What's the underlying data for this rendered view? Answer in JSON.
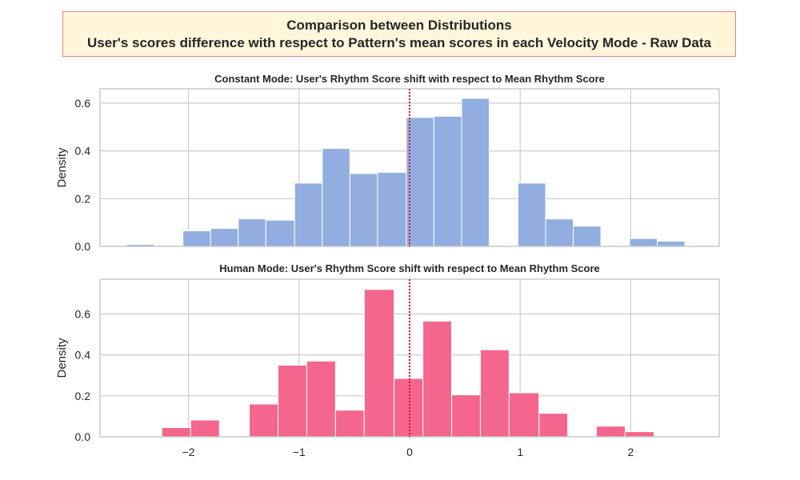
{
  "figure": {
    "title_line1": "Comparison between Distributions",
    "title_line2": "User's scores difference with respect to Pattern's mean scores in each Velocity Mode - Raw Data"
  },
  "chart_data": [
    {
      "type": "histogram",
      "title": "Constant Mode: User's Rhythm Score shift with respect to Mean Rhythm Score",
      "xlabel": "",
      "ylabel": "Density",
      "color": "#92aee0",
      "xlim": [
        -2.8,
        2.8
      ],
      "ylim": [
        0,
        0.66
      ],
      "xticks": [
        -2,
        -1,
        0,
        1,
        2
      ],
      "xtick_labels": [
        "",
        "",
        "",
        "",
        ""
      ],
      "yticks": [
        0.0,
        0.2,
        0.4,
        0.6
      ],
      "ytick_labels": [
        "0.0",
        "0.2",
        "0.4",
        "0.6"
      ],
      "vline": 0,
      "vline_color": "#e8000b",
      "bins": [
        {
          "x0": -2.56,
          "x1": -2.31,
          "value": 0.008
        },
        {
          "x0": -2.31,
          "x1": -2.05,
          "value": 0.0
        },
        {
          "x0": -2.05,
          "x1": -1.8,
          "value": 0.065
        },
        {
          "x0": -1.8,
          "x1": -1.55,
          "value": 0.075
        },
        {
          "x0": -1.55,
          "x1": -1.3,
          "value": 0.115
        },
        {
          "x0": -1.3,
          "x1": -1.04,
          "value": 0.11
        },
        {
          "x0": -1.04,
          "x1": -0.79,
          "value": 0.265
        },
        {
          "x0": -0.79,
          "x1": -0.54,
          "value": 0.41
        },
        {
          "x0": -0.54,
          "x1": -0.29,
          "value": 0.305
        },
        {
          "x0": -0.29,
          "x1": -0.03,
          "value": 0.31
        },
        {
          "x0": -0.03,
          "x1": 0.22,
          "value": 0.54
        },
        {
          "x0": 0.22,
          "x1": 0.47,
          "value": 0.545
        },
        {
          "x0": 0.47,
          "x1": 0.72,
          "value": 0.62
        },
        {
          "x0": 0.72,
          "x1": 0.98,
          "value": 0.0
        },
        {
          "x0": 0.98,
          "x1": 1.23,
          "value": 0.265
        },
        {
          "x0": 1.23,
          "x1": 1.48,
          "value": 0.115
        },
        {
          "x0": 1.48,
          "x1": 1.73,
          "value": 0.085
        },
        {
          "x0": 1.73,
          "x1": 1.99,
          "value": 0.0
        },
        {
          "x0": 1.99,
          "x1": 2.24,
          "value": 0.033
        },
        {
          "x0": 2.24,
          "x1": 2.49,
          "value": 0.022
        }
      ]
    },
    {
      "type": "histogram",
      "title": "Human Mode: User's Rhythm Score shift with respect to Mean Rhythm Score",
      "xlabel": "",
      "ylabel": "Density",
      "color": "#f4668d",
      "xlim": [
        -2.8,
        2.8
      ],
      "ylim": [
        0,
        0.77
      ],
      "xticks": [
        -2,
        -1,
        0,
        1,
        2
      ],
      "xtick_labels": [
        "−2",
        "−1",
        "0",
        "1",
        "2"
      ],
      "yticks": [
        0.0,
        0.2,
        0.4,
        0.6
      ],
      "ytick_labels": [
        "0.0",
        "0.2",
        "0.4",
        "0.6"
      ],
      "vline": 0,
      "vline_color": "#e8000b",
      "bins": [
        {
          "x0": -2.24,
          "x1": -1.98,
          "value": 0.045
        },
        {
          "x0": -1.98,
          "x1": -1.72,
          "value": 0.082
        },
        {
          "x0": -1.72,
          "x1": -1.45,
          "value": 0.0
        },
        {
          "x0": -1.45,
          "x1": -1.19,
          "value": 0.16
        },
        {
          "x0": -1.19,
          "x1": -0.93,
          "value": 0.35
        },
        {
          "x0": -0.93,
          "x1": -0.67,
          "value": 0.37
        },
        {
          "x0": -0.67,
          "x1": -0.41,
          "value": 0.13
        },
        {
          "x0": -0.41,
          "x1": -0.14,
          "value": 0.72
        },
        {
          "x0": -0.14,
          "x1": 0.12,
          "value": 0.285
        },
        {
          "x0": 0.12,
          "x1": 0.38,
          "value": 0.565
        },
        {
          "x0": 0.38,
          "x1": 0.64,
          "value": 0.205
        },
        {
          "x0": 0.64,
          "x1": 0.9,
          "value": 0.425
        },
        {
          "x0": 0.9,
          "x1": 1.17,
          "value": 0.215
        },
        {
          "x0": 1.17,
          "x1": 1.43,
          "value": 0.115
        },
        {
          "x0": 1.43,
          "x1": 1.69,
          "value": 0.0
        },
        {
          "x0": 1.69,
          "x1": 1.95,
          "value": 0.052
        },
        {
          "x0": 1.95,
          "x1": 2.21,
          "value": 0.025
        }
      ]
    }
  ]
}
